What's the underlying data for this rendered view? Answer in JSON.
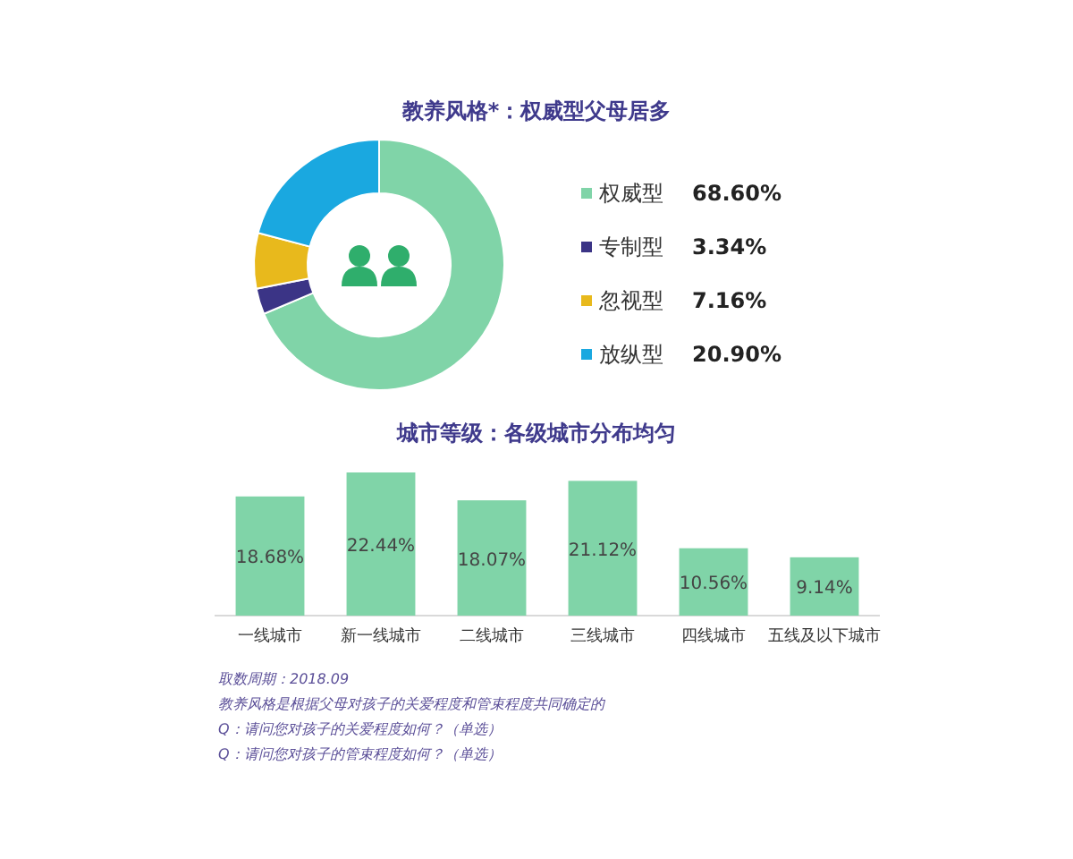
{
  "chart_data": [
    {
      "type": "donut",
      "title": "教养风格*：权威型父母居多",
      "categories": [
        "权威型",
        "专制型",
        "忽视型",
        "放纵型"
      ],
      "values": [
        68.6,
        3.34,
        7.16,
        20.9
      ],
      "colors": [
        "#80d4a8",
        "#3b3486",
        "#e8b91c",
        "#1aa8e0"
      ],
      "legend": "right",
      "value_labels": [
        "68.60%",
        "3.34%",
        "7.16%",
        "20.90%"
      ]
    },
    {
      "type": "bar",
      "title": "城市等级：各级城市分布均匀",
      "categories": [
        "一线城市",
        "新一线城市",
        "二线城市",
        "三线城市",
        "四线城市",
        "五线及以下城市"
      ],
      "values": [
        18.68,
        22.44,
        18.07,
        21.12,
        10.56,
        9.14
      ],
      "color": "#80d4a8",
      "value_labels": [
        "18.68%",
        "22.44%",
        "18.07%",
        "21.12%",
        "10.56%",
        "9.14%"
      ],
      "annotations": [
        "取数周期：2018.09",
        "教养风格是根据父母对孩子的关爱程度和管束程度共同确定的",
        "Q：请问您对孩子的关爱程度如何？（单选）",
        "Q：请问您对孩子的管束程度如何？（单选）"
      ]
    }
  ]
}
